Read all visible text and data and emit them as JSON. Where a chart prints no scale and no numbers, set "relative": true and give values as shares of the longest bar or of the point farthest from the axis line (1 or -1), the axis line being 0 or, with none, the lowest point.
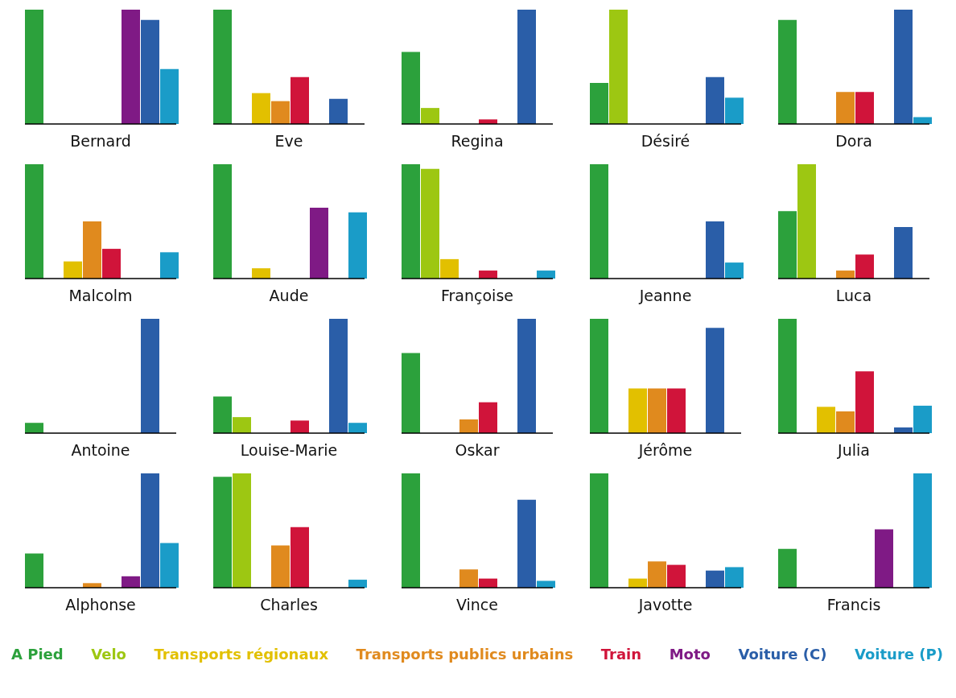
{
  "chart_data": [
    {
      "type": "bar",
      "relative": true,
      "xlabel": "Bernard",
      "categories": [
        null
      ],
      "series": [
        {
          "color": "#2ca13c",
          "values": [
            1
          ]
        },
        {
          "color": "#9dc712",
          "values": [
            0
          ]
        },
        {
          "color": "#e2c000",
          "values": [
            0
          ]
        },
        {
          "color": "#e08a1e",
          "values": [
            0
          ]
        },
        {
          "color": "#d0143a",
          "values": [
            0
          ]
        },
        {
          "color": "#7f1a85",
          "values": [
            1
          ]
        },
        {
          "color": "#2a5ea8",
          "values": [
            0.91
          ]
        },
        {
          "color": "#1a9cc8",
          "values": [
            0.48
          ]
        }
      ]
    },
    {
      "type": "bar",
      "relative": true,
      "xlabel": "Eve",
      "categories": [
        null
      ],
      "series": [
        {
          "color": "#2ca13c",
          "values": [
            1
          ]
        },
        {
          "color": "#9dc712",
          "values": [
            0
          ]
        },
        {
          "color": "#e2c000",
          "values": [
            0.27
          ]
        },
        {
          "color": "#e08a1e",
          "values": [
            0.2
          ]
        },
        {
          "color": "#d0143a",
          "values": [
            0.41
          ]
        },
        {
          "color": "#7f1a85",
          "values": [
            0
          ]
        },
        {
          "color": "#2a5ea8",
          "values": [
            0.22
          ]
        },
        {
          "color": "#1a9cc8",
          "values": [
            0
          ]
        }
      ]
    },
    {
      "type": "bar",
      "relative": true,
      "xlabel": "Regina",
      "categories": [
        null
      ],
      "series": [
        {
          "color": "#2ca13c",
          "values": [
            0.63
          ]
        },
        {
          "color": "#9dc712",
          "values": [
            0.14
          ]
        },
        {
          "color": "#e2c000",
          "values": [
            0
          ]
        },
        {
          "color": "#e08a1e",
          "values": [
            0
          ]
        },
        {
          "color": "#d0143a",
          "values": [
            0.04
          ]
        },
        {
          "color": "#7f1a85",
          "values": [
            0
          ]
        },
        {
          "color": "#2a5ea8",
          "values": [
            1
          ]
        },
        {
          "color": "#1a9cc8",
          "values": [
            0
          ]
        }
      ]
    },
    {
      "type": "bar",
      "relative": true,
      "xlabel": "Désiré",
      "categories": [
        null
      ],
      "series": [
        {
          "color": "#2ca13c",
          "values": [
            0.36
          ]
        },
        {
          "color": "#9dc712",
          "values": [
            1
          ]
        },
        {
          "color": "#e2c000",
          "values": [
            0
          ]
        },
        {
          "color": "#e08a1e",
          "values": [
            0
          ]
        },
        {
          "color": "#d0143a",
          "values": [
            0
          ]
        },
        {
          "color": "#7f1a85",
          "values": [
            0
          ]
        },
        {
          "color": "#2a5ea8",
          "values": [
            0.41
          ]
        },
        {
          "color": "#1a9cc8",
          "values": [
            0.23
          ]
        }
      ]
    },
    {
      "type": "bar",
      "relative": true,
      "xlabel": "Dora",
      "categories": [
        null
      ],
      "series": [
        {
          "color": "#2ca13c",
          "values": [
            0.91
          ]
        },
        {
          "color": "#9dc712",
          "values": [
            0
          ]
        },
        {
          "color": "#e2c000",
          "values": [
            0
          ]
        },
        {
          "color": "#e08a1e",
          "values": [
            0.28
          ]
        },
        {
          "color": "#d0143a",
          "values": [
            0.28
          ]
        },
        {
          "color": "#7f1a85",
          "values": [
            0
          ]
        },
        {
          "color": "#2a5ea8",
          "values": [
            1
          ]
        },
        {
          "color": "#1a9cc8",
          "values": [
            0.06
          ]
        }
      ]
    },
    {
      "type": "bar",
      "relative": true,
      "xlabel": "Malcolm",
      "categories": [
        null
      ],
      "series": [
        {
          "color": "#2ca13c",
          "values": [
            1
          ]
        },
        {
          "color": "#9dc712",
          "values": [
            0
          ]
        },
        {
          "color": "#e2c000",
          "values": [
            0.15
          ]
        },
        {
          "color": "#e08a1e",
          "values": [
            0.5
          ]
        },
        {
          "color": "#d0143a",
          "values": [
            0.26
          ]
        },
        {
          "color": "#7f1a85",
          "values": [
            0
          ]
        },
        {
          "color": "#2a5ea8",
          "values": [
            0
          ]
        },
        {
          "color": "#1a9cc8",
          "values": [
            0.23
          ]
        }
      ]
    },
    {
      "type": "bar",
      "relative": true,
      "xlabel": "Aude",
      "categories": [
        null
      ],
      "series": [
        {
          "color": "#2ca13c",
          "values": [
            1
          ]
        },
        {
          "color": "#9dc712",
          "values": [
            0
          ]
        },
        {
          "color": "#e2c000",
          "values": [
            0.09
          ]
        },
        {
          "color": "#e08a1e",
          "values": [
            0
          ]
        },
        {
          "color": "#d0143a",
          "values": [
            0
          ]
        },
        {
          "color": "#7f1a85",
          "values": [
            0.62
          ]
        },
        {
          "color": "#2a5ea8",
          "values": [
            0
          ]
        },
        {
          "color": "#1a9cc8",
          "values": [
            0.58
          ]
        }
      ]
    },
    {
      "type": "bar",
      "relative": true,
      "xlabel": "Françoise",
      "categories": [
        null
      ],
      "series": [
        {
          "color": "#2ca13c",
          "values": [
            1
          ]
        },
        {
          "color": "#9dc712",
          "values": [
            0.96
          ]
        },
        {
          "color": "#e2c000",
          "values": [
            0.17
          ]
        },
        {
          "color": "#e08a1e",
          "values": [
            0
          ]
        },
        {
          "color": "#d0143a",
          "values": [
            0.07
          ]
        },
        {
          "color": "#7f1a85",
          "values": [
            0
          ]
        },
        {
          "color": "#2a5ea8",
          "values": [
            0
          ]
        },
        {
          "color": "#1a9cc8",
          "values": [
            0.07
          ]
        }
      ]
    },
    {
      "type": "bar",
      "relative": true,
      "xlabel": "Jeanne",
      "categories": [
        null
      ],
      "series": [
        {
          "color": "#2ca13c",
          "values": [
            1
          ]
        },
        {
          "color": "#9dc712",
          "values": [
            0
          ]
        },
        {
          "color": "#e2c000",
          "values": [
            0
          ]
        },
        {
          "color": "#e08a1e",
          "values": [
            0
          ]
        },
        {
          "color": "#d0143a",
          "values": [
            0
          ]
        },
        {
          "color": "#7f1a85",
          "values": [
            0
          ]
        },
        {
          "color": "#2a5ea8",
          "values": [
            0.5
          ]
        },
        {
          "color": "#1a9cc8",
          "values": [
            0.14
          ]
        }
      ]
    },
    {
      "type": "bar",
      "relative": true,
      "xlabel": "Luca",
      "categories": [
        null
      ],
      "series": [
        {
          "color": "#2ca13c",
          "values": [
            0.59
          ]
        },
        {
          "color": "#9dc712",
          "values": [
            1
          ]
        },
        {
          "color": "#e2c000",
          "values": [
            0
          ]
        },
        {
          "color": "#e08a1e",
          "values": [
            0.07
          ]
        },
        {
          "color": "#d0143a",
          "values": [
            0.21
          ]
        },
        {
          "color": "#7f1a85",
          "values": [
            0
          ]
        },
        {
          "color": "#2a5ea8",
          "values": [
            0.45
          ]
        },
        {
          "color": "#1a9cc8",
          "values": [
            0
          ]
        }
      ]
    },
    {
      "type": "bar",
      "relative": true,
      "xlabel": "Antoine",
      "categories": [
        null
      ],
      "series": [
        {
          "color": "#2ca13c",
          "values": [
            0.09
          ]
        },
        {
          "color": "#9dc712",
          "values": [
            0
          ]
        },
        {
          "color": "#e2c000",
          "values": [
            0
          ]
        },
        {
          "color": "#e08a1e",
          "values": [
            0
          ]
        },
        {
          "color": "#d0143a",
          "values": [
            0
          ]
        },
        {
          "color": "#7f1a85",
          "values": [
            0
          ]
        },
        {
          "color": "#2a5ea8",
          "values": [
            1
          ]
        },
        {
          "color": "#1a9cc8",
          "values": [
            0
          ]
        }
      ]
    },
    {
      "type": "bar",
      "relative": true,
      "xlabel": "Louise-Marie",
      "categories": [
        null
      ],
      "series": [
        {
          "color": "#2ca13c",
          "values": [
            0.32
          ]
        },
        {
          "color": "#9dc712",
          "values": [
            0.14
          ]
        },
        {
          "color": "#e2c000",
          "values": [
            0
          ]
        },
        {
          "color": "#e08a1e",
          "values": [
            0
          ]
        },
        {
          "color": "#d0143a",
          "values": [
            0.11
          ]
        },
        {
          "color": "#7f1a85",
          "values": [
            0
          ]
        },
        {
          "color": "#2a5ea8",
          "values": [
            1
          ]
        },
        {
          "color": "#1a9cc8",
          "values": [
            0.09
          ]
        }
      ]
    },
    {
      "type": "bar",
      "relative": true,
      "xlabel": "Oskar",
      "categories": [
        null
      ],
      "series": [
        {
          "color": "#2ca13c",
          "values": [
            0.7
          ]
        },
        {
          "color": "#9dc712",
          "values": [
            0
          ]
        },
        {
          "color": "#e2c000",
          "values": [
            0
          ]
        },
        {
          "color": "#e08a1e",
          "values": [
            0.12
          ]
        },
        {
          "color": "#d0143a",
          "values": [
            0.27
          ]
        },
        {
          "color": "#7f1a85",
          "values": [
            0
          ]
        },
        {
          "color": "#2a5ea8",
          "values": [
            1
          ]
        },
        {
          "color": "#1a9cc8",
          "values": [
            0
          ]
        }
      ]
    },
    {
      "type": "bar",
      "relative": true,
      "xlabel": "Jérôme",
      "categories": [
        null
      ],
      "series": [
        {
          "color": "#2ca13c",
          "values": [
            1
          ]
        },
        {
          "color": "#9dc712",
          "values": [
            0
          ]
        },
        {
          "color": "#e2c000",
          "values": [
            0.39
          ]
        },
        {
          "color": "#e08a1e",
          "values": [
            0.39
          ]
        },
        {
          "color": "#d0143a",
          "values": [
            0.39
          ]
        },
        {
          "color": "#7f1a85",
          "values": [
            0
          ]
        },
        {
          "color": "#2a5ea8",
          "values": [
            0.92
          ]
        },
        {
          "color": "#1a9cc8",
          "values": [
            0
          ]
        }
      ]
    },
    {
      "type": "bar",
      "relative": true,
      "xlabel": "Julia",
      "categories": [
        null
      ],
      "series": [
        {
          "color": "#2ca13c",
          "values": [
            1
          ]
        },
        {
          "color": "#9dc712",
          "values": [
            0
          ]
        },
        {
          "color": "#e2c000",
          "values": [
            0.23
          ]
        },
        {
          "color": "#e08a1e",
          "values": [
            0.19
          ]
        },
        {
          "color": "#d0143a",
          "values": [
            0.54
          ]
        },
        {
          "color": "#7f1a85",
          "values": [
            0
          ]
        },
        {
          "color": "#2a5ea8",
          "values": [
            0.05
          ]
        },
        {
          "color": "#1a9cc8",
          "values": [
            0.24
          ]
        }
      ]
    },
    {
      "type": "bar",
      "relative": true,
      "xlabel": "Alphonse",
      "categories": [
        null
      ],
      "series": [
        {
          "color": "#2ca13c",
          "values": [
            0.3
          ]
        },
        {
          "color": "#9dc712",
          "values": [
            0
          ]
        },
        {
          "color": "#e2c000",
          "values": [
            0
          ]
        },
        {
          "color": "#e08a1e",
          "values": [
            0.04
          ]
        },
        {
          "color": "#d0143a",
          "values": [
            0
          ]
        },
        {
          "color": "#7f1a85",
          "values": [
            0.1
          ]
        },
        {
          "color": "#2a5ea8",
          "values": [
            1
          ]
        },
        {
          "color": "#1a9cc8",
          "values": [
            0.39
          ]
        }
      ]
    },
    {
      "type": "bar",
      "relative": true,
      "xlabel": "Charles",
      "categories": [
        null
      ],
      "series": [
        {
          "color": "#2ca13c",
          "values": [
            0.97
          ]
        },
        {
          "color": "#9dc712",
          "values": [
            1
          ]
        },
        {
          "color": "#e2c000",
          "values": [
            0
          ]
        },
        {
          "color": "#e08a1e",
          "values": [
            0.37
          ]
        },
        {
          "color": "#d0143a",
          "values": [
            0.53
          ]
        },
        {
          "color": "#7f1a85",
          "values": [
            0
          ]
        },
        {
          "color": "#2a5ea8",
          "values": [
            0
          ]
        },
        {
          "color": "#1a9cc8",
          "values": [
            0.07
          ]
        }
      ]
    },
    {
      "type": "bar",
      "relative": true,
      "xlabel": "Vince",
      "categories": [
        null
      ],
      "series": [
        {
          "color": "#2ca13c",
          "values": [
            1
          ]
        },
        {
          "color": "#9dc712",
          "values": [
            0
          ]
        },
        {
          "color": "#e2c000",
          "values": [
            0
          ]
        },
        {
          "color": "#e08a1e",
          "values": [
            0.16
          ]
        },
        {
          "color": "#d0143a",
          "values": [
            0.08
          ]
        },
        {
          "color": "#7f1a85",
          "values": [
            0
          ]
        },
        {
          "color": "#2a5ea8",
          "values": [
            0.77
          ]
        },
        {
          "color": "#1a9cc8",
          "values": [
            0.06
          ]
        }
      ]
    },
    {
      "type": "bar",
      "relative": true,
      "xlabel": "Javotte",
      "categories": [
        null
      ],
      "series": [
        {
          "color": "#2ca13c",
          "values": [
            1
          ]
        },
        {
          "color": "#9dc712",
          "values": [
            0
          ]
        },
        {
          "color": "#e2c000",
          "values": [
            0.08
          ]
        },
        {
          "color": "#e08a1e",
          "values": [
            0.23
          ]
        },
        {
          "color": "#d0143a",
          "values": [
            0.2
          ]
        },
        {
          "color": "#7f1a85",
          "values": [
            0
          ]
        },
        {
          "color": "#2a5ea8",
          "values": [
            0.15
          ]
        },
        {
          "color": "#1a9cc8",
          "values": [
            0.18
          ]
        }
      ]
    },
    {
      "type": "bar",
      "relative": true,
      "xlabel": "Francis",
      "categories": [
        null
      ],
      "legend": "bottom",
      "series": [
        {
          "name": "A Pied",
          "color": "#2ca13c",
          "values": [
            0.34
          ]
        },
        {
          "name": "Velo",
          "color": "#9dc712",
          "values": [
            0
          ]
        },
        {
          "name": "Transports régionaux",
          "color": "#e2c000",
          "values": [
            0
          ]
        },
        {
          "name": "Transports publics urbains",
          "color": "#e08a1e",
          "values": [
            0
          ]
        },
        {
          "name": "Train",
          "color": "#d0143a",
          "values": [
            0
          ]
        },
        {
          "name": "Moto",
          "color": "#7f1a85",
          "values": [
            0.51
          ]
        },
        {
          "name": "Voiture (C)",
          "color": "#2a5ea8",
          "values": [
            0
          ]
        },
        {
          "name": "Voiture (P)",
          "color": "#1a9cc8",
          "values": [
            1
          ]
        }
      ]
    }
  ]
}
